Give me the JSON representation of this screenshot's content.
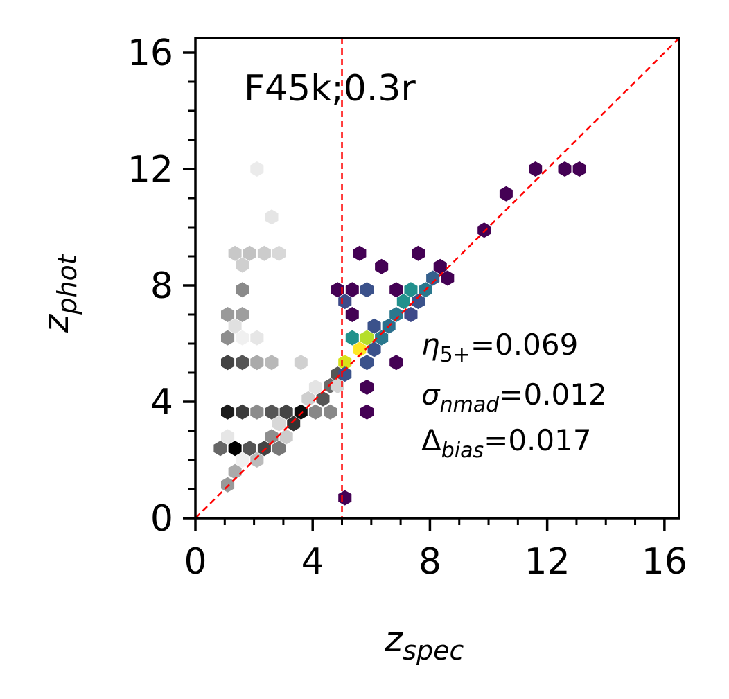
{
  "chart_data": {
    "type": "hexbin",
    "title": "F45k;0.3r",
    "xlabel": {
      "main": "z",
      "sub": "spec"
    },
    "ylabel": {
      "main": "z",
      "sub": "phot"
    },
    "xlim": [
      0,
      16.5
    ],
    "ylim": [
      0,
      16.5
    ],
    "xticks": [
      0,
      4,
      8,
      12,
      16
    ],
    "yticks": [
      0,
      4,
      8,
      12,
      16
    ],
    "reference_lines": {
      "one_to_one": true,
      "vertical_x": 5.0,
      "color": "#ff0000",
      "style": "dashed"
    },
    "stats": [
      {
        "symbol": "η",
        "sub": "5+",
        "value": "=0.069"
      },
      {
        "symbol": "σ",
        "sub": "nmad",
        "value": "=0.012"
      },
      {
        "symbol": "Δ",
        "sub": "bias",
        "value": "=0.017"
      }
    ],
    "colormaps": {
      "below_threshold": "grayscale (light to dark = low to high density)",
      "above_threshold": "viridis (purple to yellow = low to high density)"
    },
    "cells_gray": [
      {
        "x": 2.1,
        "y": 12.0,
        "c": "#ebebeb"
      },
      {
        "x": 2.6,
        "y": 10.35,
        "c": "#e5e5e5"
      },
      {
        "x": 1.35,
        "y": 9.1,
        "c": "#c8c8c8"
      },
      {
        "x": 1.85,
        "y": 9.1,
        "c": "#c2c2c2"
      },
      {
        "x": 2.35,
        "y": 9.1,
        "c": "#cccccc"
      },
      {
        "x": 2.85,
        "y": 9.1,
        "c": "#d8d8d8"
      },
      {
        "x": 1.6,
        "y": 8.7,
        "c": "#cfcfcf"
      },
      {
        "x": 1.6,
        "y": 7.85,
        "c": "#8a8a8a"
      },
      {
        "x": 1.1,
        "y": 7.0,
        "c": "#9a9a9a"
      },
      {
        "x": 1.6,
        "y": 7.0,
        "c": "#9e9e9e"
      },
      {
        "x": 1.35,
        "y": 6.6,
        "c": "#e0e0e0"
      },
      {
        "x": 1.1,
        "y": 6.2,
        "c": "#8e8e8e"
      },
      {
        "x": 1.6,
        "y": 6.2,
        "c": "#f0f0f0"
      },
      {
        "x": 2.1,
        "y": 6.2,
        "c": "#e6e6e6"
      },
      {
        "x": 1.1,
        "y": 5.35,
        "c": "#444444"
      },
      {
        "x": 1.6,
        "y": 5.35,
        "c": "#555555"
      },
      {
        "x": 2.1,
        "y": 5.35,
        "c": "#aaaaaa"
      },
      {
        "x": 2.6,
        "y": 5.35,
        "c": "#b8b8b8"
      },
      {
        "x": 3.6,
        "y": 5.35,
        "c": "#d0d0d0"
      },
      {
        "x": 4.85,
        "y": 4.95,
        "c": "#555555"
      },
      {
        "x": 4.6,
        "y": 4.55,
        "c": "#6a6a6a"
      },
      {
        "x": 4.85,
        "y": 4.55,
        "c": "#d3d3d3"
      },
      {
        "x": 4.1,
        "y": 4.5,
        "c": "#e4e4e4"
      },
      {
        "x": 3.85,
        "y": 4.1,
        "c": "#cfcfcf"
      },
      {
        "x": 4.35,
        "y": 4.1,
        "c": "#555555"
      },
      {
        "x": 1.1,
        "y": 3.65,
        "c": "#1c1c1c"
      },
      {
        "x": 1.6,
        "y": 3.65,
        "c": "#3c3c3c"
      },
      {
        "x": 2.1,
        "y": 3.65,
        "c": "#8c8c8c"
      },
      {
        "x": 2.6,
        "y": 3.65,
        "c": "#555555"
      },
      {
        "x": 3.1,
        "y": 3.65,
        "c": "#444444"
      },
      {
        "x": 3.6,
        "y": 3.65,
        "c": "#0c0c0c"
      },
      {
        "x": 4.1,
        "y": 3.65,
        "c": "#888888"
      },
      {
        "x": 4.6,
        "y": 3.65,
        "c": "#888888"
      },
      {
        "x": 3.35,
        "y": 3.25,
        "c": "#333333"
      },
      {
        "x": 2.85,
        "y": 3.25,
        "c": "#d8d8d8"
      },
      {
        "x": 2.6,
        "y": 2.8,
        "c": "#8e8e8e"
      },
      {
        "x": 3.1,
        "y": 2.8,
        "c": "#cccccc"
      },
      {
        "x": 1.1,
        "y": 2.8,
        "c": "#e6e6e6"
      },
      {
        "x": 0.85,
        "y": 2.4,
        "c": "#666666"
      },
      {
        "x": 1.35,
        "y": 2.4,
        "c": "#000000"
      },
      {
        "x": 1.85,
        "y": 2.4,
        "c": "#555555"
      },
      {
        "x": 2.35,
        "y": 2.4,
        "c": "#444444"
      },
      {
        "x": 2.85,
        "y": 2.4,
        "c": "#777777"
      },
      {
        "x": 1.6,
        "y": 2.0,
        "c": "#f0f0f0"
      },
      {
        "x": 2.1,
        "y": 2.0,
        "c": "#bbbbbb"
      },
      {
        "x": 1.35,
        "y": 1.6,
        "c": "#aaaaaa"
      },
      {
        "x": 1.1,
        "y": 1.15,
        "c": "#999999"
      }
    ],
    "cells_color": [
      {
        "x": 11.6,
        "y": 12.0,
        "c": "#440154"
      },
      {
        "x": 12.6,
        "y": 12.0,
        "c": "#440154"
      },
      {
        "x": 13.1,
        "y": 12.0,
        "c": "#440154"
      },
      {
        "x": 10.6,
        "y": 11.15,
        "c": "#440154"
      },
      {
        "x": 9.85,
        "y": 9.9,
        "c": "#440154"
      },
      {
        "x": 5.6,
        "y": 9.1,
        "c": "#440154"
      },
      {
        "x": 7.6,
        "y": 9.1,
        "c": "#440154"
      },
      {
        "x": 6.35,
        "y": 8.65,
        "c": "#440154"
      },
      {
        "x": 8.35,
        "y": 8.65,
        "c": "#440154"
      },
      {
        "x": 8.1,
        "y": 8.25,
        "c": "#35608d"
      },
      {
        "x": 8.6,
        "y": 8.25,
        "c": "#440154"
      },
      {
        "x": 4.85,
        "y": 7.85,
        "c": "#440154"
      },
      {
        "x": 5.35,
        "y": 7.85,
        "c": "#440154"
      },
      {
        "x": 5.85,
        "y": 7.85,
        "c": "#3b518b"
      },
      {
        "x": 6.85,
        "y": 7.85,
        "c": "#440154"
      },
      {
        "x": 7.35,
        "y": 7.85,
        "c": "#21908d"
      },
      {
        "x": 7.85,
        "y": 7.85,
        "c": "#2a788e"
      },
      {
        "x": 5.1,
        "y": 7.45,
        "c": "#3e4a89"
      },
      {
        "x": 7.1,
        "y": 7.45,
        "c": "#21918c"
      },
      {
        "x": 7.6,
        "y": 7.45,
        "c": "#3b528b"
      },
      {
        "x": 5.35,
        "y": 7.0,
        "c": "#440154"
      },
      {
        "x": 6.85,
        "y": 7.0,
        "c": "#2a788e"
      },
      {
        "x": 7.35,
        "y": 7.0,
        "c": "#3e4a89"
      },
      {
        "x": 6.6,
        "y": 6.6,
        "c": "#2d708e"
      },
      {
        "x": 6.1,
        "y": 6.6,
        "c": "#3b528b"
      },
      {
        "x": 6.35,
        "y": 6.2,
        "c": "#2a788e"
      },
      {
        "x": 5.35,
        "y": 6.2,
        "c": "#21918c"
      },
      {
        "x": 5.85,
        "y": 6.2,
        "c": "#b5de2b"
      },
      {
        "x": 5.6,
        "y": 5.8,
        "c": "#fde725"
      },
      {
        "x": 6.1,
        "y": 5.8,
        "c": "#3b528b"
      },
      {
        "x": 5.1,
        "y": 5.35,
        "c": "#d8e219"
      },
      {
        "x": 5.85,
        "y": 5.35,
        "c": "#3b528b"
      },
      {
        "x": 6.85,
        "y": 5.35,
        "c": "#440154"
      },
      {
        "x": 5.1,
        "y": 4.95,
        "c": "#3b528b"
      },
      {
        "x": 5.85,
        "y": 4.5,
        "c": "#440154"
      },
      {
        "x": 5.85,
        "y": 3.65,
        "c": "#440154"
      },
      {
        "x": 5.1,
        "y": 0.7,
        "c": "#440154"
      }
    ]
  }
}
